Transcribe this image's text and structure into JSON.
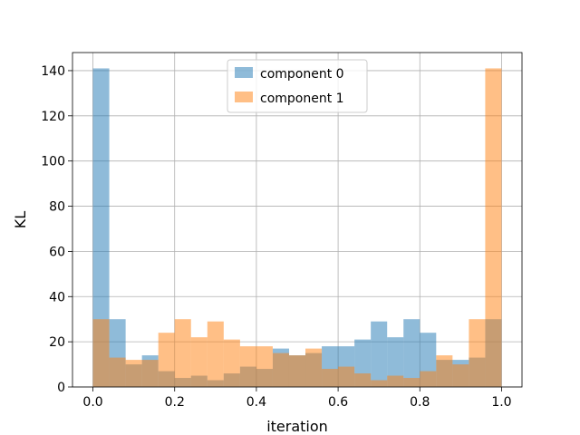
{
  "chart_data": {
    "type": "bar",
    "subtype": "overlapping-histogram",
    "xlabel": "iteration",
    "ylabel": "KL",
    "xlim": [
      -0.05,
      1.05
    ],
    "ylim": [
      0,
      148
    ],
    "xticks": [
      0.0,
      0.2,
      0.4,
      0.6,
      0.8,
      1.0
    ],
    "xtick_labels": [
      "0.0",
      "0.2",
      "0.4",
      "0.6",
      "0.8",
      "1.0"
    ],
    "yticks": [
      0,
      20,
      40,
      60,
      80,
      100,
      120,
      140
    ],
    "ytick_labels": [
      "0",
      "20",
      "40",
      "60",
      "80",
      "100",
      "120",
      "140"
    ],
    "grid": true,
    "legend_position": "top-center",
    "bin_edges": [
      0.0,
      0.04,
      0.08,
      0.12,
      0.16,
      0.2,
      0.24,
      0.28,
      0.32,
      0.36,
      0.4,
      0.44,
      0.48,
      0.52,
      0.56,
      0.6,
      0.64,
      0.68,
      0.72,
      0.76,
      0.8,
      0.84,
      0.88,
      0.92,
      0.96,
      1.0
    ],
    "series": [
      {
        "name": "component 0",
        "color": "#1f77b4",
        "opacity": 0.5,
        "values": [
          141,
          30,
          10,
          14,
          7,
          4,
          5,
          3,
          6,
          9,
          8,
          17,
          14,
          15,
          18,
          18,
          21,
          29,
          22,
          30,
          24,
          12,
          12,
          13,
          30
        ]
      },
      {
        "name": "component 1",
        "color": "#ff7f0e",
        "opacity": 0.5,
        "values": [
          30,
          13,
          12,
          12,
          24,
          30,
          22,
          29,
          21,
          18,
          18,
          15,
          14,
          17,
          8,
          9,
          6,
          3,
          5,
          4,
          7,
          14,
          10,
          30,
          141
        ]
      }
    ]
  }
}
